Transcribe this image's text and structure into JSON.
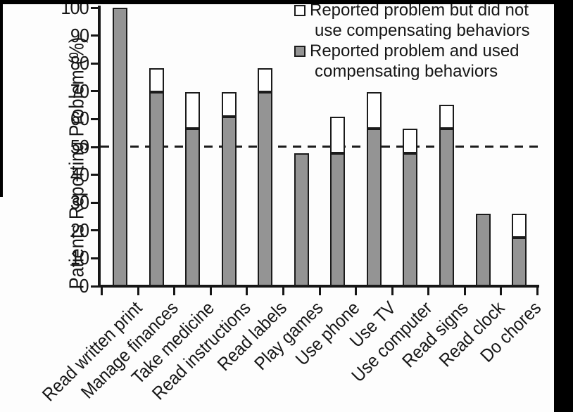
{
  "y_axis": {
    "label": "Patients Reporting Problem (%)",
    "ticks": [
      0,
      10,
      20,
      30,
      40,
      50,
      60,
      70,
      80,
      90,
      100
    ]
  },
  "legend": [
    {
      "swatch": "white",
      "color": "#ffffff",
      "label": "Reported problem but did not use compensating behaviors",
      "lines": [
        "Reported problem but did not",
        "use compensating behaviors"
      ]
    },
    {
      "swatch": "gray",
      "color": "#949494",
      "label": "Reported problem and used compensating behaviors",
      "lines": [
        "Reported problem and used",
        "compensating behaviors"
      ]
    }
  ],
  "chart_data": {
    "type": "bar",
    "stacked": true,
    "categories": [
      "Read written print",
      "Manage finances",
      "Take medicine",
      "Read instructions",
      "Read labels",
      "Play games",
      "Use phone",
      "Use TV",
      "Use computer",
      "Read signs",
      "Read clock",
      "Do chores"
    ],
    "series": [
      {
        "name": "Reported problem and used compensating behaviors",
        "color": "#949494",
        "values": [
          100,
          69.6,
          56.5,
          60.9,
          69.6,
          47.8,
          47.8,
          56.5,
          47.8,
          56.5,
          26.1,
          17.4
        ]
      },
      {
        "name": "Reported problem but did not use compensating behaviors",
        "color": "#ffffff",
        "values": [
          0,
          8.7,
          13.1,
          8.7,
          8.7,
          0,
          13.1,
          13.1,
          8.7,
          8.7,
          0,
          8.7
        ]
      }
    ],
    "totals": [
      100,
      78.3,
      69.6,
      69.6,
      78.3,
      47.8,
      60.9,
      69.6,
      56.5,
      65.2,
      26.1,
      26.1
    ],
    "reference_line": 50,
    "ylim": [
      0,
      100
    ],
    "ylabel": "Patients Reporting Problem (%)",
    "grid": false,
    "legend_position": "top-right"
  },
  "colors": {
    "bar_fill": "#949494",
    "bar_outline": "#1b1b1b",
    "text": "#161616",
    "background": "#fdfdfd",
    "scan_border": "#000000",
    "reference_line": "#1c1c1c"
  }
}
